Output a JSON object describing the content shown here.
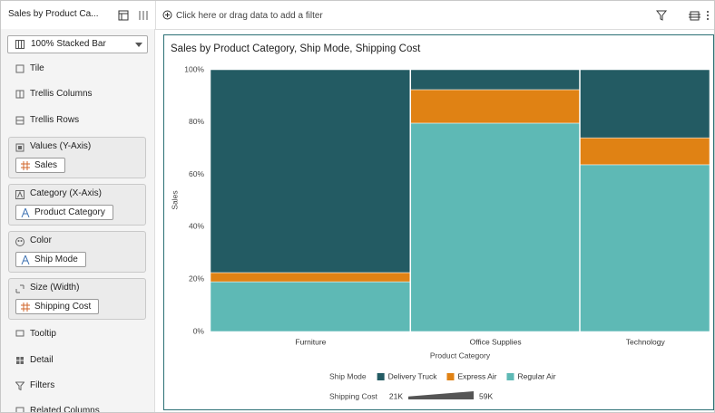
{
  "header": {
    "tab_title": "Sales by Product Ca...",
    "filter_prompt": "Click here or drag data to add a filter"
  },
  "grammar": {
    "chart_type": "100% Stacked Bar",
    "items": [
      "Tile",
      "Trellis Columns",
      "Trellis Rows"
    ],
    "sections": [
      {
        "title": "Values (Y-Axis)",
        "pill": "Sales"
      },
      {
        "title": "Category (X-Axis)",
        "pill": "Product Category"
      },
      {
        "title": "Color",
        "pill": "Ship Mode"
      },
      {
        "title": "Size (Width)",
        "pill": "Shipping Cost"
      }
    ],
    "more_items": [
      "Tooltip",
      "Detail",
      "Filters",
      "Related Columns"
    ]
  },
  "chart_data": {
    "type": "stacked_bar_variable_width",
    "title": "Sales by Product Category, Ship Mode, Shipping Cost",
    "x_label": "Product Category",
    "y_label": "Sales",
    "categories": [
      "Furniture",
      "Office Supplies",
      "Technology"
    ],
    "series": [
      {
        "name": "Delivery Truck",
        "color": "#235b63",
        "values": [
          77.5,
          7.6,
          26.0
        ]
      },
      {
        "name": "Express Air",
        "color": "#e08214",
        "values": [
          3.5,
          12.8,
          10.3
        ]
      },
      {
        "name": "Regular Air",
        "color": "#5eb9b5",
        "values": [
          19.0,
          79.6,
          63.7
        ]
      }
    ],
    "legend_title": "Ship Mode",
    "width_values": [
      59000,
      49900,
      38350
    ],
    "size_legend": {
      "title": "Shipping Cost",
      "min": {
        "value": 21000,
        "label": "21K"
      },
      "max": {
        "value": 59000,
        "label": "59K"
      }
    },
    "ylim": [
      0,
      100
    ],
    "yticks": [
      {
        "value": 0,
        "label": "0%"
      },
      {
        "value": 20,
        "label": "20%"
      },
      {
        "value": 40,
        "label": "40%"
      },
      {
        "value": 60,
        "label": "60%"
      },
      {
        "value": 80,
        "label": "80%"
      },
      {
        "value": 100,
        "label": "100%"
      }
    ],
    "grid": false
  }
}
